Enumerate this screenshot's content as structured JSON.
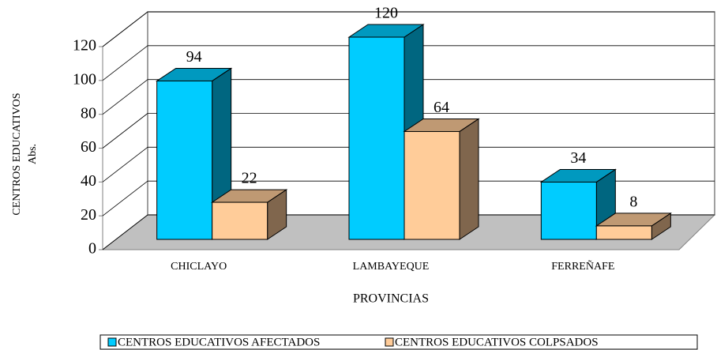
{
  "chart_data": {
    "type": "bar3d",
    "categories": [
      "CHICLAYO",
      "LAMBAYEQUE",
      "FERREÑAFE"
    ],
    "series": [
      {
        "name": "CENTROS EDUCATIVOS AFECTADOS",
        "color": "#00ccff",
        "values": [
          94,
          120,
          34
        ]
      },
      {
        "name": "CENTROS EDUCATIVOS COLPSADOS",
        "color": "#ffcc99",
        "values": [
          22,
          64,
          8
        ]
      }
    ],
    "ylim": [
      0,
      120
    ],
    "yticks": [
      0,
      20,
      40,
      60,
      80,
      100,
      120
    ],
    "x_label": "PROVINCIAS",
    "y_label": [
      "CENTROS EDUCATIVOS",
      "Abs."
    ],
    "grid": true,
    "legend": "bottom"
  }
}
